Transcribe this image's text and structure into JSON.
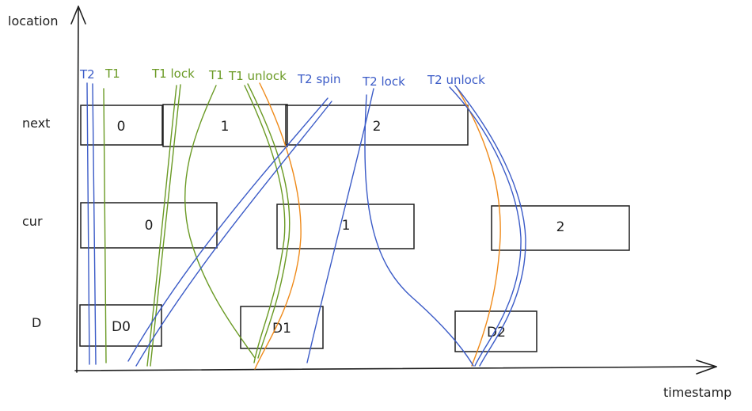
{
  "axes": {
    "y_label": "location",
    "x_label": "timestamp"
  },
  "rows": [
    {
      "label": "next",
      "cells": [
        "0",
        "1",
        "2"
      ]
    },
    {
      "label": "cur",
      "cells": [
        "0",
        "1",
        "2"
      ]
    },
    {
      "label": "D",
      "cells": [
        "D0",
        "D1",
        "D2"
      ]
    }
  ],
  "annotations": [
    {
      "text": "T2",
      "thread": "T2"
    },
    {
      "text": "T1",
      "thread": "T1"
    },
    {
      "text": "T1 lock",
      "thread": "T1"
    },
    {
      "text": "T1",
      "thread": "T1"
    },
    {
      "text": "T1 unlock",
      "thread": "T1"
    },
    {
      "text": "T2 spin",
      "thread": "T2"
    },
    {
      "text": "T2 lock",
      "thread": "T2"
    },
    {
      "text": "T2 unlock",
      "thread": "T2"
    }
  ],
  "colors": {
    "T1": "#6a9a24",
    "T2": "#3b5bc7",
    "highlight": "#ef8a1a",
    "ink": "#1e1e1e"
  }
}
